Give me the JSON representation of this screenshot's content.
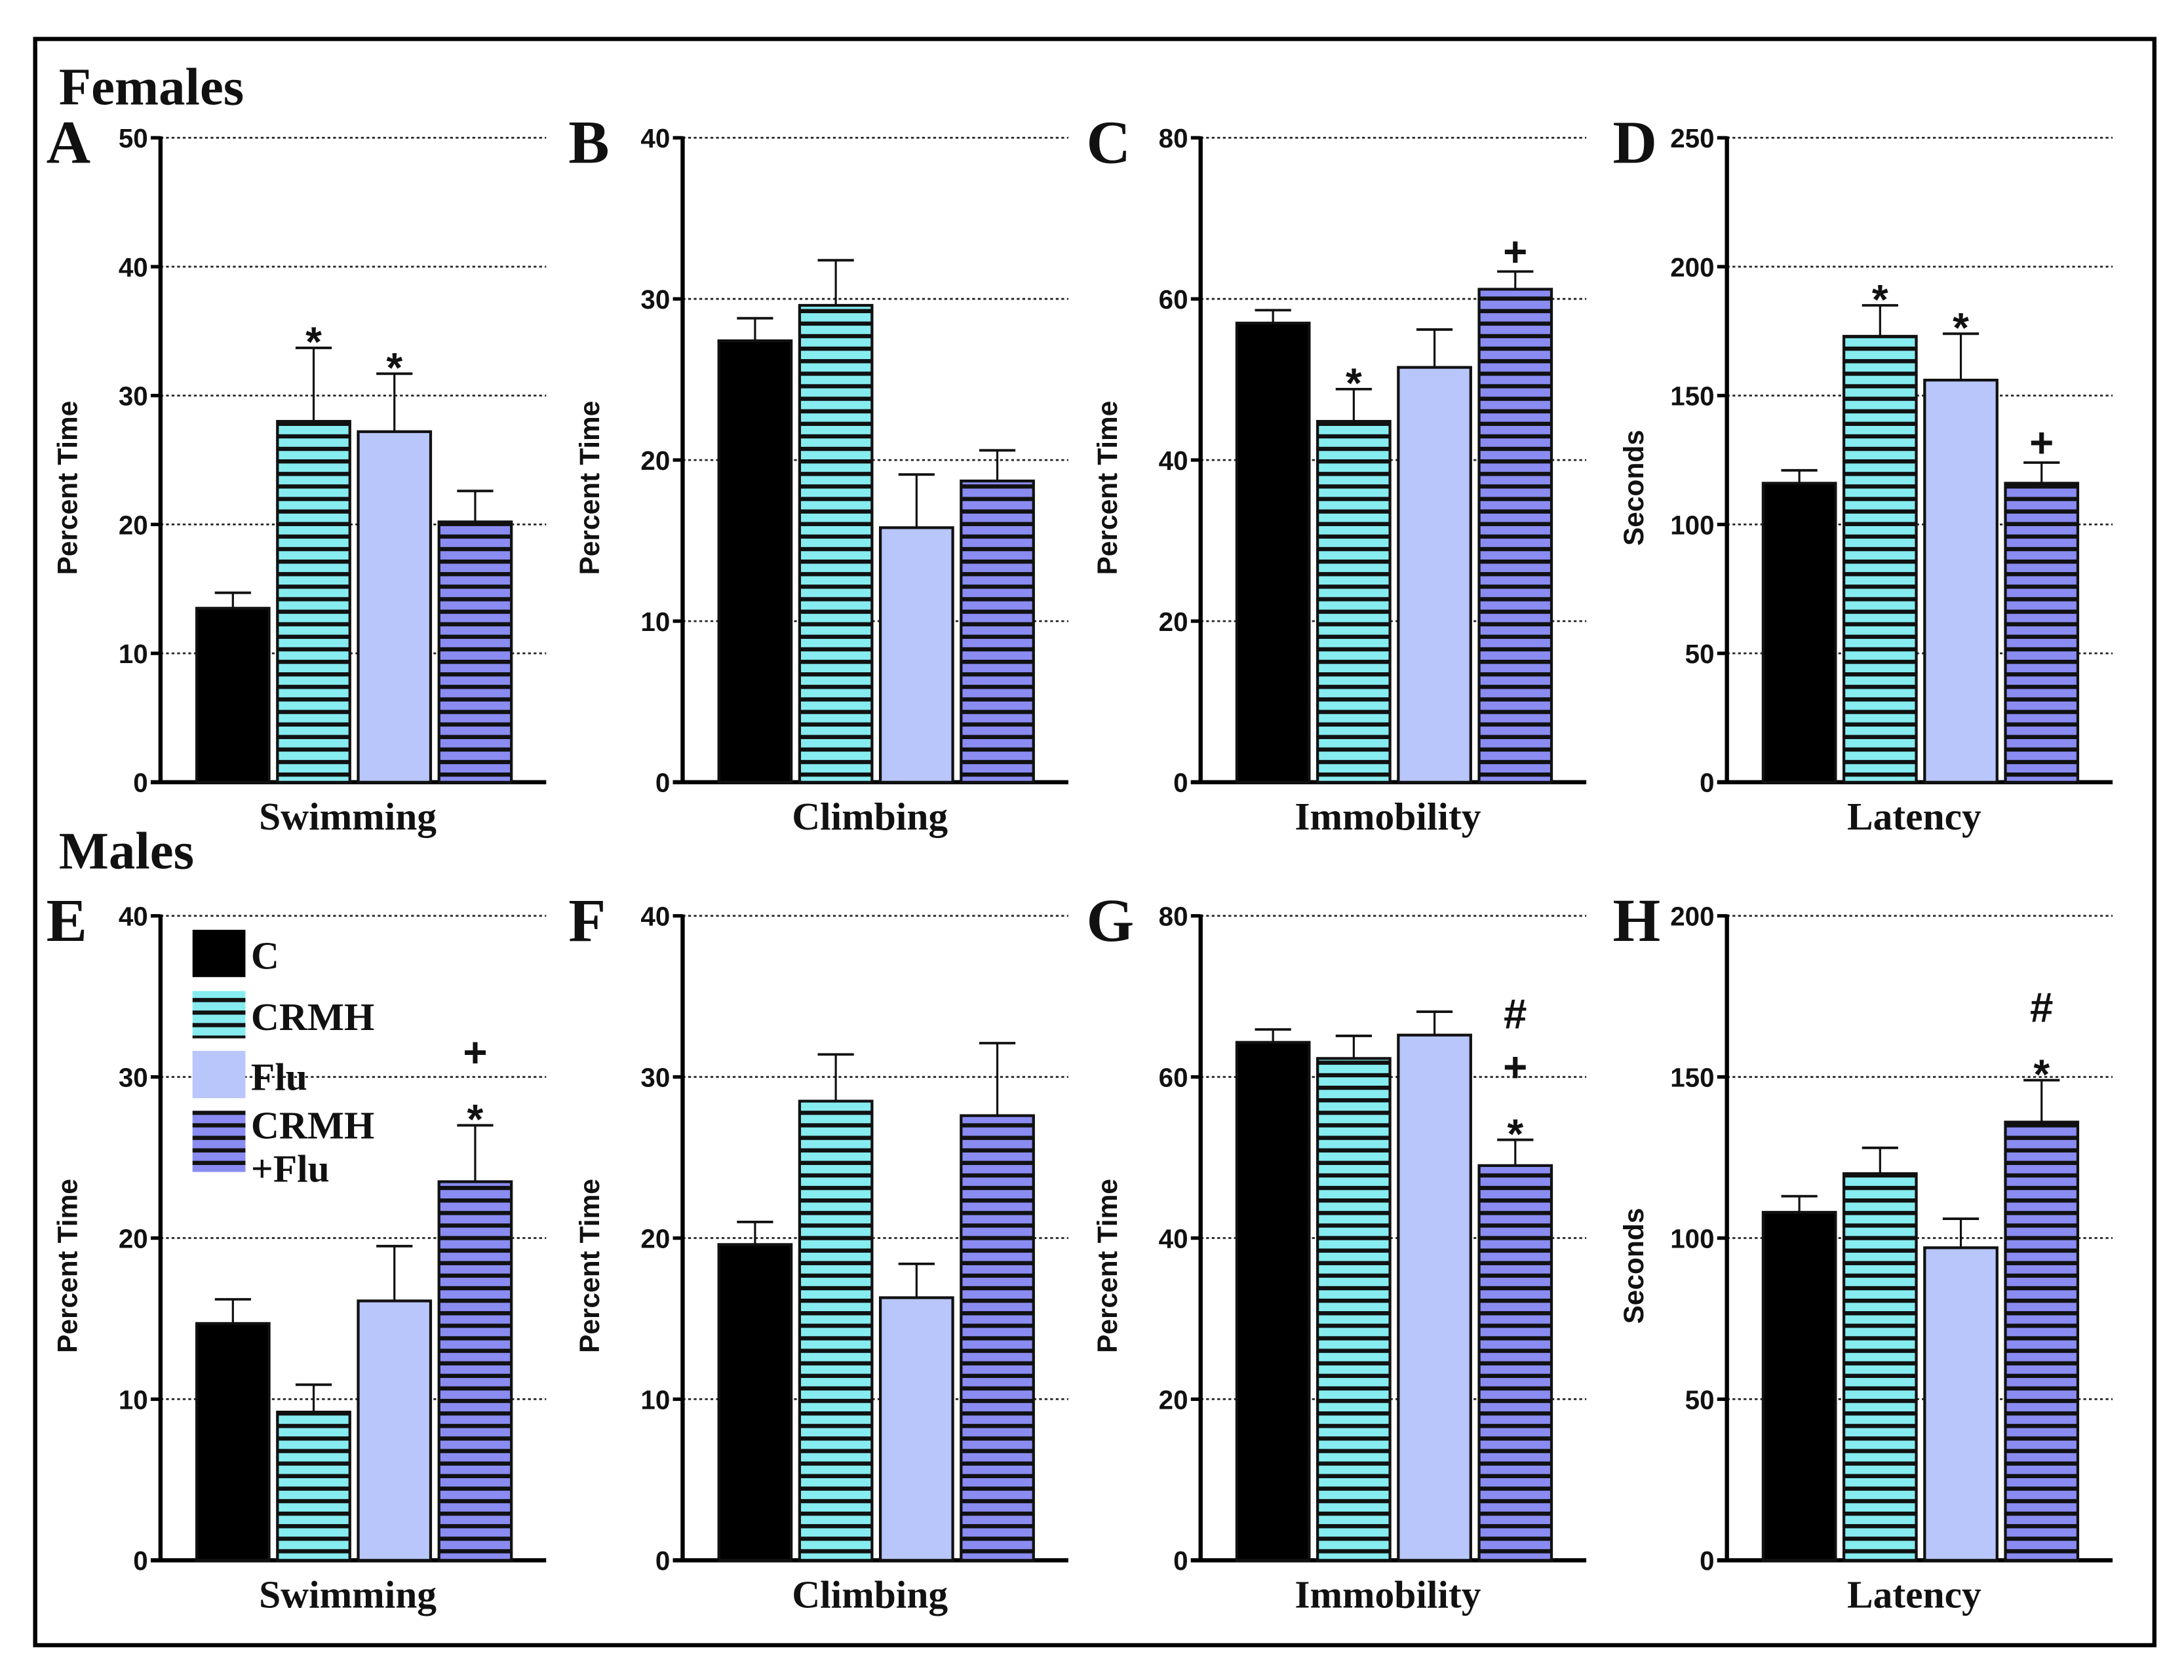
{
  "sections": {
    "top": "Females",
    "bottom": "Males"
  },
  "colors": {
    "C": "#000000",
    "CRMH": "#86ecf0",
    "Flu": "#b9c6fb",
    "CRMH+Flu": "#8a8cf2"
  },
  "legend": [
    {
      "label": "C",
      "label2": ""
    },
    {
      "label": "CRMH",
      "label2": ""
    },
    {
      "label": "Flu",
      "label2": ""
    },
    {
      "label": "CRMH",
      "label2": "+Flu"
    }
  ],
  "chart_data": [
    {
      "panel": "A",
      "type": "bar",
      "section": "Females",
      "xlabel": "Swimming",
      "ylabel": "Percent Time",
      "ylim": [
        0,
        50
      ],
      "yticks": [
        0,
        10,
        20,
        30,
        40,
        50
      ],
      "grid": true,
      "categories": [
        "C",
        "CRMH",
        "Flu",
        "CRMH+Flu"
      ],
      "values": [
        13.5,
        28.0,
        27.2,
        20.2
      ],
      "errors": [
        1.2,
        5.7,
        4.5,
        2.4
      ],
      "annotations": [
        "",
        "*",
        "*",
        ""
      ]
    },
    {
      "panel": "B",
      "type": "bar",
      "section": "Females",
      "xlabel": "Climbing",
      "ylabel": "Percent Time",
      "ylim": [
        0,
        40
      ],
      "yticks": [
        0,
        10,
        20,
        30,
        40
      ],
      "grid": true,
      "categories": [
        "C",
        "CRMH",
        "Flu",
        "CRMH+Flu"
      ],
      "values": [
        27.4,
        29.6,
        15.8,
        18.7
      ],
      "errors": [
        1.4,
        2.8,
        3.3,
        1.9
      ],
      "annotations": [
        "",
        "",
        "",
        ""
      ]
    },
    {
      "panel": "C",
      "type": "bar",
      "section": "Females",
      "xlabel": "Immobility",
      "ylabel": "Percent Time",
      "ylim": [
        0,
        80
      ],
      "yticks": [
        0,
        20,
        40,
        60,
        80
      ],
      "grid": true,
      "categories": [
        "C",
        "CRMH",
        "Flu",
        "CRMH+Flu"
      ],
      "values": [
        57.0,
        44.8,
        51.5,
        61.2
      ],
      "errors": [
        1.6,
        4.0,
        4.7,
        2.2
      ],
      "annotations": [
        "",
        "*",
        "",
        "+"
      ]
    },
    {
      "panel": "D",
      "type": "bar",
      "section": "Females",
      "xlabel": "Latency",
      "ylabel": "Seconds",
      "ylim": [
        0,
        250
      ],
      "yticks": [
        0,
        50,
        100,
        150,
        200,
        250
      ],
      "grid": true,
      "categories": [
        "C",
        "CRMH",
        "Flu",
        "CRMH+Flu"
      ],
      "values": [
        116,
        173,
        156,
        116
      ],
      "errors": [
        5,
        12,
        18,
        8
      ],
      "annotations": [
        "",
        "*",
        "*",
        "+"
      ]
    },
    {
      "panel": "E",
      "type": "bar",
      "section": "Males",
      "xlabel": "Swimming",
      "ylabel": "Percent Time",
      "ylim": [
        0,
        40
      ],
      "yticks": [
        0,
        10,
        20,
        30,
        40
      ],
      "grid": true,
      "categories": [
        "C",
        "CRMH",
        "Flu",
        "CRMH+Flu"
      ],
      "values": [
        14.7,
        9.2,
        16.1,
        23.5
      ],
      "errors": [
        1.5,
        1.7,
        3.4,
        3.5
      ],
      "annotations": [
        "",
        "",
        "",
        "+*"
      ]
    },
    {
      "panel": "F",
      "type": "bar",
      "section": "Males",
      "xlabel": "Climbing",
      "ylabel": "Percent Time",
      "ylim": [
        0,
        40
      ],
      "yticks": [
        0,
        10,
        20,
        30,
        40
      ],
      "grid": true,
      "categories": [
        "C",
        "CRMH",
        "Flu",
        "CRMH+Flu"
      ],
      "values": [
        19.6,
        28.5,
        16.3,
        27.6
      ],
      "errors": [
        1.4,
        2.9,
        2.1,
        4.5
      ],
      "annotations": [
        "",
        "",
        "",
        ""
      ]
    },
    {
      "panel": "G",
      "type": "bar",
      "section": "Males",
      "xlabel": "Immobility",
      "ylabel": "Percent Time",
      "ylim": [
        0,
        80
      ],
      "yticks": [
        0,
        20,
        40,
        60,
        80
      ],
      "grid": true,
      "categories": [
        "C",
        "CRMH",
        "Flu",
        "CRMH+Flu"
      ],
      "values": [
        64.3,
        62.3,
        65.2,
        49.0
      ],
      "errors": [
        1.6,
        2.8,
        2.9,
        3.2
      ],
      "annotations": [
        "",
        "",
        "",
        "#+*"
      ]
    },
    {
      "panel": "H",
      "type": "bar",
      "section": "Males",
      "xlabel": "Latency",
      "ylabel": "Seconds",
      "ylim": [
        0,
        200
      ],
      "yticks": [
        0,
        50,
        100,
        150,
        200
      ],
      "grid": true,
      "categories": [
        "C",
        "CRMH",
        "Flu",
        "CRMH+Flu"
      ],
      "values": [
        108,
        120,
        97,
        136
      ],
      "errors": [
        5,
        8,
        9,
        13
      ],
      "annotations": [
        "",
        "",
        "",
        "#*"
      ]
    }
  ]
}
